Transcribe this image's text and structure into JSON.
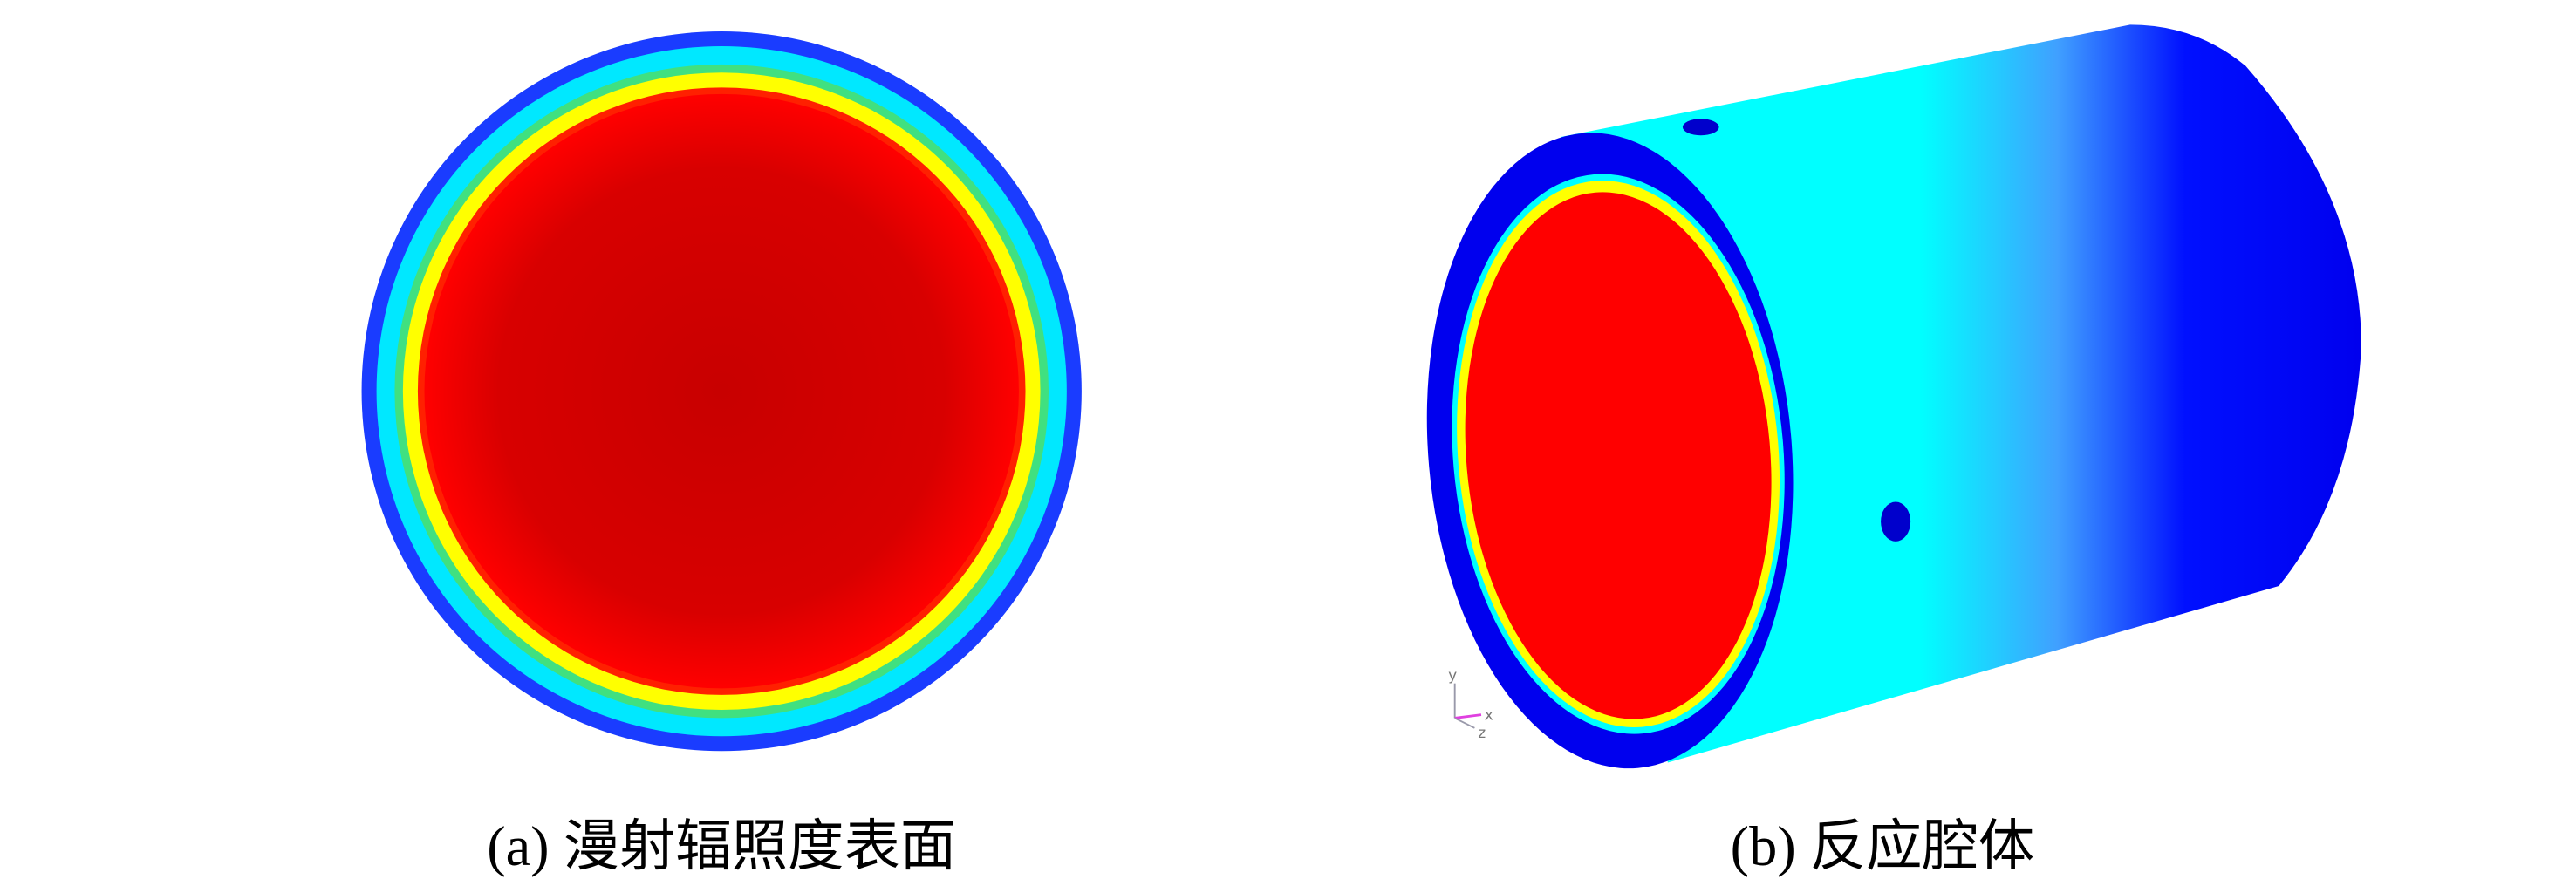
{
  "panels": [
    {
      "caption": "(a) 漫射辐照度表面"
    },
    {
      "caption": "(b) 反应腔体",
      "axes": {
        "y": "y",
        "x": "x",
        "z": "z"
      }
    }
  ]
}
